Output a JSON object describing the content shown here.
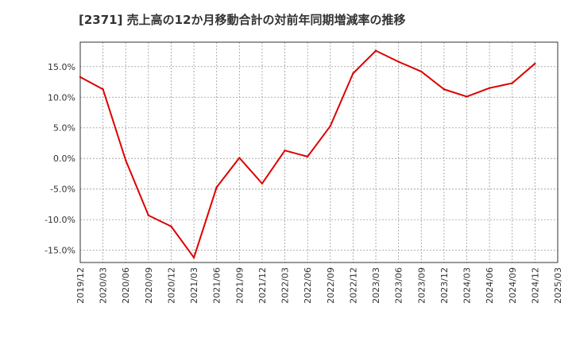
{
  "chart_data": {
    "type": "line",
    "title": "[2371]  売上高の12か月移動合計の対前年同期増減率の推移",
    "xlabel": "",
    "ylabel": "",
    "categories": [
      "2019/12",
      "2020/03",
      "2020/06",
      "2020/09",
      "2020/12",
      "2021/03",
      "2021/06",
      "2021/09",
      "2021/12",
      "2022/03",
      "2022/06",
      "2022/09",
      "2022/12",
      "2023/03",
      "2023/06",
      "2023/09",
      "2023/12",
      "2024/03",
      "2024/06",
      "2024/09",
      "2024/12",
      "2025/03"
    ],
    "series": [
      {
        "name": "対前年同期増減率",
        "color": "#dd0000",
        "values": [
          13.3,
          11.3,
          -0.3,
          -9.3,
          -11.1,
          -16.2,
          -4.7,
          0.1,
          -4.1,
          1.3,
          0.3,
          5.3,
          13.9,
          17.6,
          15.8,
          14.2,
          11.3,
          10.1,
          11.5,
          12.3,
          15.5,
          null
        ]
      }
    ],
    "yticks": [
      -15,
      -10,
      -5,
      0,
      5,
      10,
      15
    ],
    "ytick_labels": [
      "-15.0%",
      "-10.0%",
      "-5.0%",
      "0.0%",
      "5.0%",
      "10.0%",
      "15.0%"
    ],
    "ylim": [
      -17,
      19
    ],
    "grid": true
  }
}
